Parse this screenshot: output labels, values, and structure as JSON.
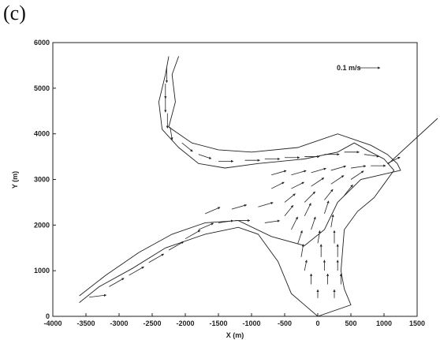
{
  "panel_label": "(c)",
  "chart_data": {
    "type": "vector-field",
    "title": "",
    "xlabel": "X (m)",
    "ylabel": "Y (m)",
    "xlim": [
      -4000,
      1500
    ],
    "ylim": [
      0,
      6000
    ],
    "x_ticks": [
      -4000,
      -3500,
      -3000,
      -2500,
      -2000,
      -1500,
      -1000,
      -500,
      0,
      500,
      1000,
      1500
    ],
    "x_tick_labels": [
      "-4000",
      "-3500",
      "-3000",
      "-2500",
      "-2000",
      "-1500",
      "-1000",
      "-500",
      "0",
      "500",
      "1000",
      "1500"
    ],
    "y_ticks": [
      0,
      1000,
      2000,
      3000,
      4000,
      5000,
      6000
    ],
    "y_tick_labels": [
      "0",
      "1000",
      "2000",
      "3000",
      "4000",
      "5000",
      "6000"
    ],
    "scale_label": "0.1 m/s",
    "scale_vector": {
      "x": 250,
      "y": 5500,
      "u": 0.1,
      "v": 0.0
    },
    "grid": false,
    "boundaries": [
      [
        [
          -2250,
          5700
        ],
        [
          -2300,
          5300
        ],
        [
          -2400,
          4700
        ],
        [
          -2350,
          4100
        ],
        [
          -2100,
          3700
        ],
        [
          -1800,
          3350
        ],
        [
          -1400,
          3250
        ],
        [
          -900,
          3350
        ],
        [
          -200,
          3450
        ],
        [
          300,
          3600
        ],
        [
          550,
          3800
        ],
        [
          800,
          3600
        ],
        [
          1000,
          3450
        ],
        [
          1150,
          3200
        ],
        [
          1000,
          2900
        ],
        [
          850,
          2600
        ],
        [
          600,
          2300
        ],
        [
          400,
          1900
        ],
        [
          350,
          1000
        ],
        [
          400,
          600
        ],
        [
          500,
          250
        ],
        [
          0,
          0
        ],
        [
          -400,
          500
        ],
        [
          -600,
          1200
        ],
        [
          -900,
          1800
        ],
        [
          -1200,
          1950
        ],
        [
          -1700,
          1800
        ],
        [
          -2300,
          1500
        ],
        [
          -2800,
          1050
        ],
        [
          -3300,
          650
        ],
        [
          -3600,
          300
        ]
      ],
      [
        [
          -2100,
          5700
        ],
        [
          -2200,
          5300
        ],
        [
          -2150,
          4700
        ],
        [
          -2250,
          4150
        ],
        [
          -1900,
          3800
        ],
        [
          -1500,
          3650
        ],
        [
          -1000,
          3600
        ],
        [
          -300,
          3700
        ],
        [
          300,
          4000
        ],
        [
          800,
          3750
        ],
        [
          1050,
          3550
        ],
        [
          1200,
          3350
        ],
        [
          1250,
          3200
        ],
        [
          1100,
          3150
        ],
        [
          650,
          3000
        ],
        [
          300,
          2500
        ],
        [
          100,
          1900
        ],
        [
          -200,
          1550
        ],
        [
          -700,
          1750
        ],
        [
          -1200,
          2100
        ],
        [
          -1700,
          2050
        ],
        [
          -2200,
          1800
        ],
        [
          -2700,
          1400
        ],
        [
          -3200,
          900
        ],
        [
          -3600,
          450
        ]
      ]
    ],
    "vectors": [
      {
        "x": -3450,
        "y": 420,
        "u": 0.08,
        "v": 0.01
      },
      {
        "x": -3150,
        "y": 650,
        "u": 0.07,
        "v": 0.04
      },
      {
        "x": -2850,
        "y": 900,
        "u": 0.07,
        "v": 0.04
      },
      {
        "x": -2550,
        "y": 1180,
        "u": 0.07,
        "v": 0.04
      },
      {
        "x": -2250,
        "y": 1450,
        "u": 0.07,
        "v": 0.04
      },
      {
        "x": -2000,
        "y": 1700,
        "u": 0.07,
        "v": 0.04
      },
      {
        "x": -1800,
        "y": 1900,
        "u": 0.07,
        "v": 0.03
      },
      {
        "x": -1500,
        "y": 2050,
        "u": 0.07,
        "v": 0.01
      },
      {
        "x": -1250,
        "y": 2100,
        "u": 0.07,
        "v": 0.0
      },
      {
        "x": -800,
        "y": 2050,
        "u": 0.07,
        "v": 0.01
      },
      {
        "x": -1700,
        "y": 2250,
        "u": 0.07,
        "v": 0.03
      },
      {
        "x": -1300,
        "y": 2350,
        "u": 0.07,
        "v": 0.02
      },
      {
        "x": -900,
        "y": 2400,
        "u": 0.07,
        "v": 0.02
      },
      {
        "x": -2280,
        "y": 5450,
        "u": 0.0,
        "v": -0.07
      },
      {
        "x": -2300,
        "y": 5100,
        "u": 0.0,
        "v": -0.07
      },
      {
        "x": -2300,
        "y": 4800,
        "u": 0.0,
        "v": -0.07
      },
      {
        "x": -2270,
        "y": 4450,
        "u": 0.0,
        "v": -0.07
      },
      {
        "x": -2230,
        "y": 4150,
        "u": 0.01,
        "v": -0.06
      },
      {
        "x": -2050,
        "y": 3800,
        "u": 0.05,
        "v": -0.04
      },
      {
        "x": -1800,
        "y": 3550,
        "u": 0.06,
        "v": -0.02
      },
      {
        "x": -1500,
        "y": 3400,
        "u": 0.07,
        "v": 0.0
      },
      {
        "x": -1100,
        "y": 3420,
        "u": 0.07,
        "v": 0.0
      },
      {
        "x": -800,
        "y": 3450,
        "u": 0.07,
        "v": 0.0
      },
      {
        "x": -500,
        "y": 3480,
        "u": 0.07,
        "v": 0.0
      },
      {
        "x": -200,
        "y": 3500,
        "u": 0.07,
        "v": 0.0
      },
      {
        "x": 100,
        "y": 3550,
        "u": 0.07,
        "v": 0.0
      },
      {
        "x": 400,
        "y": 3600,
        "u": 0.07,
        "v": 0.0
      },
      {
        "x": 700,
        "y": 3550,
        "u": 0.07,
        "v": -0.01
      },
      {
        "x": -700,
        "y": 3100,
        "u": 0.07,
        "v": 0.02
      },
      {
        "x": -400,
        "y": 3100,
        "u": 0.07,
        "v": 0.02
      },
      {
        "x": -100,
        "y": 3150,
        "u": 0.07,
        "v": 0.02
      },
      {
        "x": 200,
        "y": 3200,
        "u": 0.07,
        "v": 0.02
      },
      {
        "x": 500,
        "y": 3250,
        "u": 0.07,
        "v": 0.01
      },
      {
        "x": 800,
        "y": 3300,
        "u": 0.07,
        "v": 0.0
      },
      {
        "x": -700,
        "y": 2800,
        "u": 0.06,
        "v": 0.03
      },
      {
        "x": -400,
        "y": 2800,
        "u": 0.06,
        "v": 0.03
      },
      {
        "x": -100,
        "y": 2850,
        "u": 0.06,
        "v": 0.04
      },
      {
        "x": 200,
        "y": 2900,
        "u": 0.06,
        "v": 0.04
      },
      {
        "x": 500,
        "y": 3000,
        "u": 0.06,
        "v": 0.04
      },
      {
        "x": -500,
        "y": 2500,
        "u": 0.05,
        "v": 0.04
      },
      {
        "x": -200,
        "y": 2500,
        "u": 0.05,
        "v": 0.05
      },
      {
        "x": 100,
        "y": 2550,
        "u": 0.04,
        "v": 0.05
      },
      {
        "x": 400,
        "y": 2650,
        "u": 0.04,
        "v": 0.05
      },
      {
        "x": -500,
        "y": 2200,
        "u": 0.04,
        "v": 0.05
      },
      {
        "x": -200,
        "y": 2200,
        "u": 0.03,
        "v": 0.06
      },
      {
        "x": 100,
        "y": 2250,
        "u": 0.02,
        "v": 0.06
      },
      {
        "x": -400,
        "y": 1900,
        "u": 0.03,
        "v": 0.06
      },
      {
        "x": -100,
        "y": 1900,
        "u": 0.02,
        "v": 0.06
      },
      {
        "x": 200,
        "y": 1950,
        "u": 0.01,
        "v": 0.06
      },
      {
        "x": -300,
        "y": 1600,
        "u": 0.02,
        "v": 0.06
      },
      {
        "x": 0,
        "y": 1600,
        "u": 0.01,
        "v": 0.06
      },
      {
        "x": 250,
        "y": 1600,
        "u": 0.0,
        "v": 0.06
      },
      {
        "x": -250,
        "y": 1300,
        "u": 0.01,
        "v": 0.06
      },
      {
        "x": 50,
        "y": 1300,
        "u": 0.0,
        "v": 0.06
      },
      {
        "x": 300,
        "y": 1300,
        "u": 0.0,
        "v": 0.06
      },
      {
        "x": -200,
        "y": 1000,
        "u": 0.01,
        "v": 0.05
      },
      {
        "x": 100,
        "y": 1000,
        "u": 0.0,
        "v": 0.05
      },
      {
        "x": 300,
        "y": 1000,
        "u": 0.0,
        "v": 0.05
      },
      {
        "x": -100,
        "y": 700,
        "u": 0.0,
        "v": 0.05
      },
      {
        "x": 150,
        "y": 700,
        "u": 0.0,
        "v": 0.05
      },
      {
        "x": 350,
        "y": 700,
        "u": 0.0,
        "v": 0.05
      },
      {
        "x": 0,
        "y": 400,
        "u": 0.0,
        "v": 0.04
      },
      {
        "x": 250,
        "y": 400,
        "u": 0.0,
        "v": 0.04
      },
      {
        "x": 1050,
        "y": 3350,
        "u": 0.06,
        "v": 0.03
      }
    ]
  }
}
